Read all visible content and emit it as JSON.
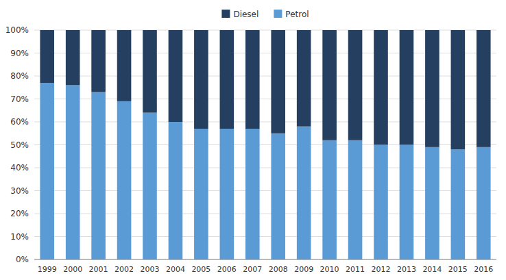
{
  "chart_data": {
    "type": "bar",
    "stacked": true,
    "categories": [
      "1999",
      "2000",
      "2001",
      "2002",
      "2003",
      "2004",
      "2005",
      "2006",
      "2007",
      "2008",
      "2009",
      "2010",
      "2011",
      "2012",
      "2013",
      "2014",
      "2015",
      "2016"
    ],
    "series": [
      {
        "name": "Petrol",
        "color": "#5b9bd5",
        "values": [
          77,
          76,
          73,
          69,
          64,
          60,
          57,
          57,
          57,
          55,
          58,
          52,
          52,
          50,
          50,
          49,
          48,
          49
        ]
      },
      {
        "name": "Diesel",
        "color": "#243f60",
        "values": [
          23,
          24,
          27,
          31,
          36,
          40,
          43,
          43,
          43,
          45,
          42,
          48,
          48,
          50,
          50,
          51,
          52,
          51
        ]
      }
    ],
    "ylim": [
      0,
      100
    ],
    "yticks": [
      {
        "value": 0,
        "label": "0%"
      },
      {
        "value": 10,
        "label": "10%"
      },
      {
        "value": 20,
        "label": "20%"
      },
      {
        "value": 30,
        "label": "30%"
      },
      {
        "value": 40,
        "label": "40%"
      },
      {
        "value": 50,
        "label": "50%"
      },
      {
        "value": 60,
        "label": "60%"
      },
      {
        "value": 70,
        "label": "70%"
      },
      {
        "value": 80,
        "label": "80%"
      },
      {
        "value": 90,
        "label": "90%"
      },
      {
        "value": 100,
        "label": "100%"
      }
    ],
    "grid": true,
    "legend": "top"
  }
}
